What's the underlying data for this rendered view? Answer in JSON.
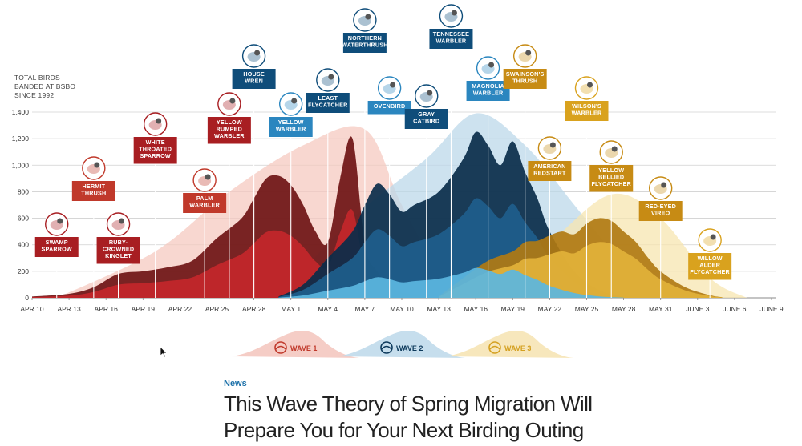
{
  "chart_data": {
    "type": "area",
    "ylabel": "TOTAL BIRDS BANDED AT BSBO SINCE 1992",
    "ylabel_lines": [
      "TOTAL BIRDS",
      "BANDED AT BSBO",
      "SINCE 1992"
    ],
    "ylim": [
      0,
      1400
    ],
    "yticks": [
      "0",
      "200",
      "400",
      "600",
      "800",
      "1,000",
      "1,200",
      "1,400"
    ],
    "x_ticks": [
      "APR 10",
      "APR 13",
      "APR 16",
      "APR 19",
      "APR 22",
      "APR 25",
      "APR 28",
      "MAY 1",
      "MAY 4",
      "MAY 7",
      "MAY 10",
      "MAY 13",
      "MAY 16",
      "MAY 19",
      "MAY 22",
      "MAY 25",
      "MAY 28",
      "MAY 31",
      "JUNE 3",
      "JUNE 6",
      "JUNE 9"
    ],
    "grid": true,
    "colors": {
      "wave1": "#8b1a1a",
      "wave2": "#0d3a5c",
      "wave3": "#d4a020"
    },
    "series": [
      {
        "name": "WAVE 1",
        "color": "#a81e22",
        "points": [
          [
            0,
            10
          ],
          [
            3,
            30
          ],
          [
            5,
            80
          ],
          [
            7,
            180
          ],
          [
            9,
            200
          ],
          [
            11,
            230
          ],
          [
            13,
            280
          ],
          [
            15,
            450
          ],
          [
            17,
            600
          ],
          [
            18,
            750
          ],
          [
            19,
            900
          ],
          [
            20,
            920
          ],
          [
            21,
            850
          ],
          [
            22,
            700
          ],
          [
            23,
            500
          ],
          [
            24,
            420
          ],
          [
            25,
            900
          ],
          [
            26,
            1200
          ],
          [
            27,
            400
          ],
          [
            28,
            200
          ],
          [
            29,
            100
          ],
          [
            30,
            40
          ],
          [
            32,
            10
          ]
        ]
      },
      {
        "name": "WAVE 2",
        "color": "#0d3a5c",
        "points": [
          [
            20,
            10
          ],
          [
            22,
            100
          ],
          [
            24,
            300
          ],
          [
            26,
            500
          ],
          [
            27,
            700
          ],
          [
            28,
            860
          ],
          [
            29,
            780
          ],
          [
            30,
            650
          ],
          [
            31,
            700
          ],
          [
            33,
            800
          ],
          [
            35,
            1050
          ],
          [
            36,
            1250
          ],
          [
            37,
            1150
          ],
          [
            38,
            1000
          ],
          [
            39,
            1180
          ],
          [
            40,
            950
          ],
          [
            41,
            750
          ],
          [
            42,
            500
          ],
          [
            44,
            200
          ],
          [
            46,
            60
          ],
          [
            48,
            10
          ]
        ]
      },
      {
        "name": "WAVE 3",
        "color": "#d4a020",
        "points": [
          [
            33,
            10
          ],
          [
            35,
            150
          ],
          [
            37,
            280
          ],
          [
            39,
            350
          ],
          [
            40,
            420
          ],
          [
            41,
            430
          ],
          [
            42,
            470
          ],
          [
            43,
            500
          ],
          [
            44,
            480
          ],
          [
            45,
            560
          ],
          [
            46,
            600
          ],
          [
            47,
            580
          ],
          [
            48,
            500
          ],
          [
            49,
            420
          ],
          [
            50,
            300
          ],
          [
            51,
            200
          ],
          [
            53,
            80
          ],
          [
            55,
            20
          ],
          [
            56,
            5
          ]
        ]
      }
    ],
    "birds": [
      {
        "name": "SWAMP SPARROW",
        "lines": [
          "SWAMP",
          "SPARROW"
        ],
        "wave": 1,
        "day": 2
      },
      {
        "name": "HERMIT THRUSH",
        "lines": [
          "HERMIT",
          "THRUSH"
        ],
        "wave": 1,
        "day": 5
      },
      {
        "name": "RUBY-CROWNED KINGLET",
        "lines": [
          "RUBY-",
          "CROWNED",
          "KINGLET"
        ],
        "wave": 1,
        "day": 7
      },
      {
        "name": "WHITE THROATED SPARROW",
        "lines": [
          "WHITE",
          "THROATED",
          "SPARROW"
        ],
        "wave": 1,
        "day": 10
      },
      {
        "name": "PALM WARBLER",
        "lines": [
          "PALM",
          "WARBLER"
        ],
        "wave": 1,
        "day": 14
      },
      {
        "name": "YELLOW RUMPED WARBLER",
        "lines": [
          "YELLOW",
          "RUMPED",
          "WARBLER"
        ],
        "wave": 1,
        "day": 16
      },
      {
        "name": "HOUSE WREN",
        "lines": [
          "HOUSE",
          "WREN"
        ],
        "wave": 2,
        "day": 18
      },
      {
        "name": "YELLOW WARBLER",
        "lines": [
          "YELLOW",
          "WARBLER"
        ],
        "wave": 2,
        "day": 21
      },
      {
        "name": "LEAST FLYCATCHER",
        "lines": [
          "LEAST",
          "FLYCATCHER"
        ],
        "wave": 2,
        "day": 24
      },
      {
        "name": "NORTHERN WATERTHRUSH",
        "lines": [
          "NORTHERN",
          "WATERTHRUSH"
        ],
        "wave": 2,
        "day": 27
      },
      {
        "name": "OVENBIRD",
        "lines": [
          "OVENBIRD"
        ],
        "wave": 2,
        "day": 29
      },
      {
        "name": "GRAY CATBIRD",
        "lines": [
          "GRAY",
          "CATBIRD"
        ],
        "wave": 2,
        "day": 32
      },
      {
        "name": "TENNESSEE WARBLER",
        "lines": [
          "TENNESSEE",
          "WARBLER"
        ],
        "wave": 2,
        "day": 34
      },
      {
        "name": "MAGNOLIA WARBLER",
        "lines": [
          "MAGNOLIA",
          "WARBLER"
        ],
        "wave": 2,
        "day": 37
      },
      {
        "name": "SWAINSON'S THRUSH",
        "lines": [
          "SWAINSON'S",
          "THRUSH"
        ],
        "wave": 3,
        "day": 40
      },
      {
        "name": "AMERICAN REDSTART",
        "lines": [
          "AMERICAN",
          "REDSTART"
        ],
        "wave": 3,
        "day": 42
      },
      {
        "name": "WILSON'S WARBLER",
        "lines": [
          "WILSON'S",
          "WARBLER"
        ],
        "wave": 3,
        "day": 45
      },
      {
        "name": "YELLOW BELLIED FLYCATCHER",
        "lines": [
          "YELLOW",
          "BELLIED",
          "FLYCATCHER"
        ],
        "wave": 3,
        "day": 47
      },
      {
        "name": "RED-EYED VIREO",
        "lines": [
          "RED-EYED",
          "VIREO"
        ],
        "wave": 3,
        "day": 51
      },
      {
        "name": "WILLOW ALDER FLYCATCHER",
        "lines": [
          "WILLOW",
          "ALDER",
          "FLYCATCHER"
        ],
        "wave": 3,
        "day": 55
      }
    ],
    "legend": [
      {
        "label": "WAVE 1",
        "color": "#c0392b"
      },
      {
        "label": "WAVE 2",
        "color": "#0d3a5c"
      },
      {
        "label": "WAVE 3",
        "color": "#d4a020"
      }
    ]
  },
  "article": {
    "section": "News",
    "headline_line1": "This Wave Theory of Spring Migration Will",
    "headline_line2": "Prepare You for Your Next Birding Outing"
  }
}
